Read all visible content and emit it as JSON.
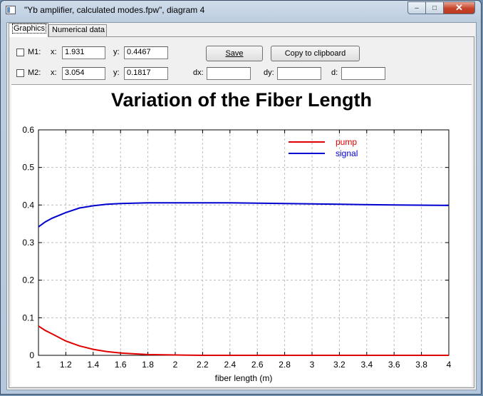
{
  "window": {
    "title": "\"Yb amplifier, calculated modes.fpw\", diagram 4",
    "min_glyph": "–",
    "max_glyph": "□",
    "close_glyph": "✕"
  },
  "tabs": [
    {
      "label": "Graphics",
      "active": true
    },
    {
      "label": "Numerical data",
      "active": false
    }
  ],
  "markers": {
    "m1": {
      "label": "M1:",
      "checked": false,
      "x_label": "x:",
      "x_value": "1.931",
      "y_label": "y:",
      "y_value": "0.4467"
    },
    "m2": {
      "label": "M2:",
      "checked": false,
      "x_label": "x:",
      "x_value": "3.054",
      "y_label": "y:",
      "y_value": "0.1817"
    },
    "dx_label": "dx:",
    "dx_value": "",
    "dy_label": "dy:",
    "dy_value": "",
    "d_label": "d:",
    "d_value": ""
  },
  "buttons": {
    "save": "Save",
    "copy": "Copy to clipboard"
  },
  "chart_data": {
    "type": "line",
    "title": "Variation of the Fiber Length",
    "xlabel": "fiber length (m)",
    "ylabel": "",
    "xlim": [
      1,
      4
    ],
    "ylim": [
      0,
      0.6
    ],
    "xticks": [
      "1",
      "1.2",
      "1.4",
      "1.6",
      "1.8",
      "2",
      "2.2",
      "2.4",
      "2.6",
      "2.8",
      "3",
      "3.2",
      "3.4",
      "3.6",
      "3.8",
      "4"
    ],
    "yticks": [
      "0",
      "0.1",
      "0.2",
      "0.3",
      "0.4",
      "0.5",
      "0.6"
    ],
    "grid": true,
    "legend_position": "top-right",
    "series": [
      {
        "name": "pump",
        "color": "#e00000",
        "x": [
          1.0,
          1.05,
          1.1,
          1.2,
          1.3,
          1.4,
          1.5,
          1.6,
          1.7,
          1.8,
          2.0,
          2.2,
          2.5,
          3.0,
          3.5,
          4.0
        ],
        "y": [
          0.078,
          0.066,
          0.057,
          0.038,
          0.025,
          0.016,
          0.01,
          0.006,
          0.004,
          0.002,
          0.001,
          0.0,
          0.0,
          0.0,
          0.0,
          0.0
        ]
      },
      {
        "name": "signal",
        "color": "#0000d0",
        "x": [
          1.0,
          1.05,
          1.1,
          1.2,
          1.3,
          1.4,
          1.5,
          1.6,
          1.8,
          2.0,
          2.4,
          2.8,
          3.2,
          3.6,
          4.0
        ],
        "y": [
          0.342,
          0.355,
          0.365,
          0.38,
          0.392,
          0.398,
          0.402,
          0.404,
          0.406,
          0.406,
          0.406,
          0.404,
          0.402,
          0.4,
          0.399
        ]
      }
    ]
  }
}
